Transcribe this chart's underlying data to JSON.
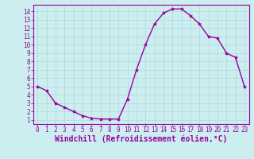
{
  "x": [
    0,
    1,
    2,
    3,
    4,
    5,
    6,
    7,
    8,
    9,
    10,
    11,
    12,
    13,
    14,
    15,
    16,
    17,
    18,
    19,
    20,
    21,
    22,
    23
  ],
  "y": [
    5,
    4.5,
    3,
    2.5,
    2,
    1.5,
    1.2,
    1.1,
    1.1,
    1.1,
    3.5,
    7,
    10,
    12.5,
    13.8,
    14.3,
    14.3,
    13.5,
    12.5,
    11,
    10.8,
    9,
    8.5,
    5
  ],
  "line_color": "#990099",
  "marker": "*",
  "marker_size": 3,
  "bg_color": "#cceef0",
  "grid_color": "#b0d8da",
  "xlabel": "Windchill (Refroidissement éolien,°C)",
  "xlim": [
    -0.5,
    23.5
  ],
  "ylim": [
    0.5,
    14.8
  ],
  "xticks": [
    0,
    1,
    2,
    3,
    4,
    5,
    6,
    7,
    8,
    9,
    10,
    11,
    12,
    13,
    14,
    15,
    16,
    17,
    18,
    19,
    20,
    21,
    22,
    23
  ],
  "yticks": [
    1,
    2,
    3,
    4,
    5,
    6,
    7,
    8,
    9,
    10,
    11,
    12,
    13,
    14
  ],
  "tick_color": "#990099",
  "label_color": "#990099",
  "tick_fontsize": 5.5,
  "xlabel_fontsize": 7,
  "linewidth": 1.0
}
